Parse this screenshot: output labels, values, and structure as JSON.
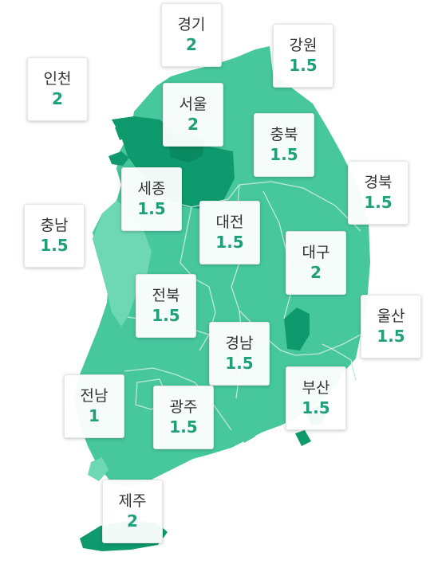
{
  "map": {
    "colors": {
      "land": "#46c79c",
      "land_light": "#6dd8b3",
      "land_dark": "#0f9a6e",
      "border": "#bfe9d9",
      "value_text": "#1fa07a",
      "name_text": "#333333"
    },
    "regions": [
      {
        "id": "gyeonggi",
        "name": "경기",
        "value": "2"
      },
      {
        "id": "gangwon",
        "name": "강원",
        "value": "1.5"
      },
      {
        "id": "incheon",
        "name": "인천",
        "value": "2"
      },
      {
        "id": "seoul",
        "name": "서울",
        "value": "2"
      },
      {
        "id": "chungbuk",
        "name": "충북",
        "value": "1.5"
      },
      {
        "id": "gyeongbuk",
        "name": "경북",
        "value": "1.5"
      },
      {
        "id": "sejong",
        "name": "세종",
        "value": "1.5"
      },
      {
        "id": "chungnam",
        "name": "충남",
        "value": "1.5"
      },
      {
        "id": "daejeon",
        "name": "대전",
        "value": "1.5"
      },
      {
        "id": "daegu",
        "name": "대구",
        "value": "2"
      },
      {
        "id": "jeonbuk",
        "name": "전북",
        "value": "1.5"
      },
      {
        "id": "ulsan",
        "name": "울산",
        "value": "1.5"
      },
      {
        "id": "gyeongnam",
        "name": "경남",
        "value": "1.5"
      },
      {
        "id": "jeonnam",
        "name": "전남",
        "value": "1"
      },
      {
        "id": "busan",
        "name": "부산",
        "value": "1.5"
      },
      {
        "id": "gwangju",
        "name": "광주",
        "value": "1.5"
      },
      {
        "id": "jeju",
        "name": "제주",
        "value": "2"
      }
    ]
  }
}
